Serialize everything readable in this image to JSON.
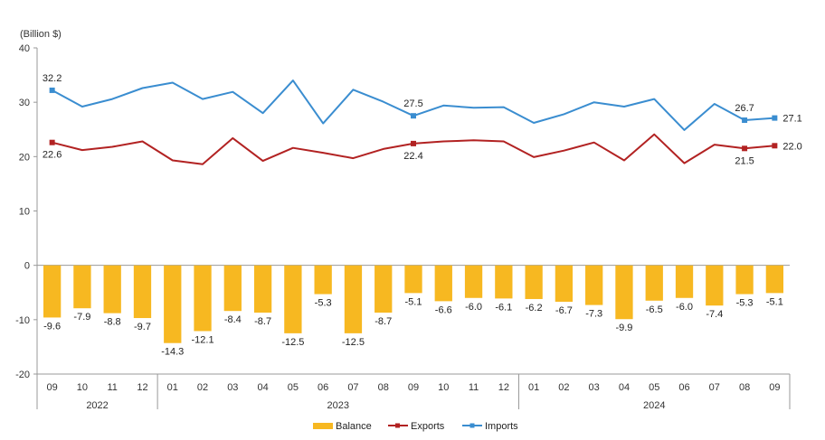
{
  "chart_data": {
    "type": "bar+line",
    "y_unit_label": "(Billion $)",
    "ylim": [
      -20,
      40
    ],
    "y_ticks": [
      "40",
      "30",
      "20",
      "10",
      "0",
      "-10",
      "-20"
    ],
    "y_tick_values": [
      40,
      30,
      20,
      10,
      0,
      -10,
      -20
    ],
    "months": [
      "09",
      "10",
      "11",
      "12",
      "01",
      "02",
      "03",
      "04",
      "05",
      "06",
      "07",
      "08",
      "09",
      "10",
      "11",
      "12",
      "01",
      "02",
      "03",
      "04",
      "05",
      "06",
      "07",
      "08",
      "09"
    ],
    "years": [
      {
        "label": "2022",
        "start": 0,
        "end": 3
      },
      {
        "label": "2023",
        "start": 4,
        "end": 15
      },
      {
        "label": "2024",
        "start": 16,
        "end": 24
      }
    ],
    "series": [
      {
        "name": "Balance",
        "kind": "bar",
        "color": "#F7B821",
        "values": [
          -9.6,
          -7.9,
          -8.8,
          -9.7,
          -14.3,
          -12.1,
          -8.4,
          -8.7,
          -12.5,
          -5.3,
          -12.5,
          -8.7,
          -5.1,
          -6.6,
          -6.0,
          -6.1,
          -6.2,
          -6.7,
          -7.3,
          -9.9,
          -6.5,
          -6.0,
          -7.4,
          -5.3,
          -5.1
        ],
        "labels": [
          "-9.6",
          "-7.9",
          "-8.8",
          "-9.7",
          "-14.3",
          "-12.1",
          "-8.4",
          "-8.7",
          "-12.5",
          "-5.3",
          "-12.5",
          "-8.7",
          "-5.1",
          "-6.6",
          "-6.0",
          "-6.1",
          "-6.2",
          "-6.7",
          "-7.3",
          "-9.9",
          "-6.5",
          "-6.0",
          "-7.4",
          "-5.3",
          "-5.1"
        ]
      },
      {
        "name": "Exports",
        "kind": "line",
        "color": "#B22222",
        "values": [
          22.6,
          21.2,
          21.8,
          22.8,
          19.3,
          18.6,
          23.4,
          19.2,
          21.6,
          20.7,
          19.7,
          21.4,
          22.4,
          22.8,
          23.0,
          22.8,
          19.9,
          21.1,
          22.6,
          19.3,
          24.1,
          18.8,
          22.2,
          21.5,
          22.0
        ],
        "labels": [
          {
            "index": 0,
            "text": "22.6"
          },
          {
            "index": 12,
            "text": "22.4"
          },
          {
            "index": 23,
            "text": "21.5"
          },
          {
            "index": 24,
            "text": "22.0"
          }
        ]
      },
      {
        "name": "Imports",
        "kind": "line",
        "color": "#3A8DD0",
        "values": [
          32.2,
          29.2,
          30.6,
          32.6,
          33.6,
          30.6,
          31.9,
          28.0,
          34.0,
          26.1,
          32.3,
          30.1,
          27.5,
          29.4,
          29.0,
          29.1,
          26.2,
          27.8,
          30.0,
          29.2,
          30.6,
          24.9,
          29.7,
          26.7,
          27.1
        ],
        "labels": [
          {
            "index": 0,
            "text": "32.2"
          },
          {
            "index": 12,
            "text": "27.5"
          },
          {
            "index": 23,
            "text": "26.7"
          },
          {
            "index": 24,
            "text": "27.1"
          }
        ]
      }
    ],
    "legend": [
      "Balance",
      "Exports",
      "Imports"
    ],
    "legend_placement": "bottom-center",
    "grid": false
  }
}
